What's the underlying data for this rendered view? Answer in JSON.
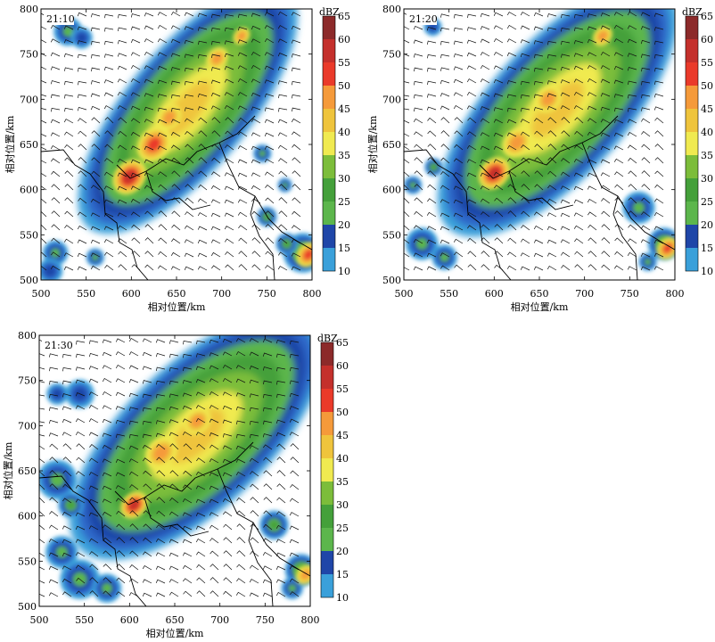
{
  "chart_data": [
    {
      "type": "heatmap",
      "time_label": "21:10",
      "xlabel": "相对位置/km",
      "ylabel": "相对位置/km",
      "xlim": [
        500,
        800
      ],
      "ylim": [
        500,
        800
      ],
      "xticks": [
        "500",
        "550",
        "600",
        "650",
        "700",
        "750",
        "800"
      ],
      "yticks": [
        "500",
        "550",
        "600",
        "650",
        "700",
        "750",
        "800"
      ],
      "colorbar_unit": "dBZ",
      "colorbar_ticks": [
        "10",
        "15",
        "20",
        "25",
        "30",
        "35",
        "40",
        "45",
        "50",
        "55",
        "60",
        "65"
      ],
      "echo_band": {
        "x1": 600,
        "y1": 615,
        "x2": 725,
        "y2": 765,
        "width": 135
      },
      "cores": [
        {
          "x": 598,
          "y": 614,
          "dbz": 62,
          "r": 14
        },
        {
          "x": 625,
          "y": 650,
          "dbz": 57,
          "r": 14
        },
        {
          "x": 642,
          "y": 680,
          "dbz": 54,
          "r": 10
        },
        {
          "x": 695,
          "y": 745,
          "dbz": 53,
          "r": 9
        },
        {
          "x": 722,
          "y": 770,
          "dbz": 52,
          "r": 7
        },
        {
          "x": 796,
          "y": 528,
          "dbz": 58,
          "r": 10
        }
      ],
      "cells": [
        {
          "x": 530,
          "y": 775,
          "dbz": 26,
          "r": 16
        },
        {
          "x": 545,
          "y": 768,
          "dbz": 24,
          "r": 12
        },
        {
          "x": 516,
          "y": 530,
          "dbz": 26,
          "r": 14
        },
        {
          "x": 510,
          "y": 510,
          "dbz": 20,
          "r": 14
        },
        {
          "x": 560,
          "y": 525,
          "dbz": 26,
          "r": 10
        },
        {
          "x": 745,
          "y": 640,
          "dbz": 27,
          "r": 10
        },
        {
          "x": 770,
          "y": 605,
          "dbz": 26,
          "r": 8
        },
        {
          "x": 750,
          "y": 570,
          "dbz": 33,
          "r": 11
        },
        {
          "x": 790,
          "y": 530,
          "dbz": 38,
          "r": 22
        },
        {
          "x": 772,
          "y": 540,
          "dbz": 32,
          "r": 12
        }
      ]
    },
    {
      "type": "heatmap",
      "time_label": "21:20",
      "xlabel": "相对位置/km",
      "ylabel": "相对位置/km",
      "xlim": [
        500,
        800
      ],
      "ylim": [
        500,
        800
      ],
      "xticks": [
        "500",
        "550",
        "600",
        "650",
        "700",
        "750",
        "800"
      ],
      "yticks": [
        "500",
        "550",
        "600",
        "650",
        "700",
        "750",
        "800"
      ],
      "colorbar_unit": "dBZ",
      "colorbar_ticks": [
        "10",
        "15",
        "20",
        "25",
        "30",
        "35",
        "40",
        "45",
        "50",
        "55",
        "60",
        "65"
      ],
      "echo_band": {
        "x1": 605,
        "y1": 618,
        "x2": 735,
        "y2": 760,
        "width": 150
      },
      "cores": [
        {
          "x": 600,
          "y": 618,
          "dbz": 62,
          "r": 13
        },
        {
          "x": 625,
          "y": 652,
          "dbz": 56,
          "r": 12
        },
        {
          "x": 660,
          "y": 700,
          "dbz": 54,
          "r": 11
        },
        {
          "x": 720,
          "y": 770,
          "dbz": 52,
          "r": 8
        },
        {
          "x": 792,
          "y": 535,
          "dbz": 57,
          "r": 9
        }
      ],
      "cells": [
        {
          "x": 532,
          "y": 780,
          "dbz": 22,
          "r": 10
        },
        {
          "x": 533,
          "y": 625,
          "dbz": 33,
          "r": 10
        },
        {
          "x": 510,
          "y": 605,
          "dbz": 26,
          "r": 10
        },
        {
          "x": 520,
          "y": 540,
          "dbz": 27,
          "r": 18
        },
        {
          "x": 545,
          "y": 525,
          "dbz": 26,
          "r": 14
        },
        {
          "x": 760,
          "y": 580,
          "dbz": 28,
          "r": 18
        },
        {
          "x": 788,
          "y": 540,
          "dbz": 38,
          "r": 18
        },
        {
          "x": 770,
          "y": 520,
          "dbz": 26,
          "r": 10
        }
      ]
    },
    {
      "type": "heatmap",
      "time_label": "21:30",
      "xlabel": "相对位置/km",
      "ylabel": "相对位置/km",
      "xlim": [
        500,
        800
      ],
      "ylim": [
        500,
        800
      ],
      "xticks": [
        "500",
        "550",
        "600",
        "650",
        "700",
        "750",
        "800"
      ],
      "yticks": [
        "500",
        "550",
        "600",
        "650",
        "700",
        "750",
        "800"
      ],
      "colorbar_unit": "dBZ",
      "colorbar_ticks": [
        "10",
        "15",
        "20",
        "25",
        "30",
        "35",
        "40",
        "45",
        "50",
        "55",
        "60",
        "65"
      ],
      "echo_band": {
        "x1": 608,
        "y1": 625,
        "x2": 740,
        "y2": 752,
        "width": 160
      },
      "cores": [
        {
          "x": 605,
          "y": 612,
          "dbz": 62,
          "r": 11
        },
        {
          "x": 635,
          "y": 670,
          "dbz": 55,
          "r": 13
        },
        {
          "x": 675,
          "y": 705,
          "dbz": 56,
          "r": 11
        },
        {
          "x": 795,
          "y": 535,
          "dbz": 55,
          "r": 8
        }
      ],
      "cells": [
        {
          "x": 545,
          "y": 735,
          "dbz": 24,
          "r": 16
        },
        {
          "x": 520,
          "y": 735,
          "dbz": 22,
          "r": 12
        },
        {
          "x": 520,
          "y": 640,
          "dbz": 27,
          "r": 22
        },
        {
          "x": 535,
          "y": 612,
          "dbz": 30,
          "r": 14
        },
        {
          "x": 525,
          "y": 560,
          "dbz": 26,
          "r": 18
        },
        {
          "x": 545,
          "y": 530,
          "dbz": 27,
          "r": 22
        },
        {
          "x": 575,
          "y": 520,
          "dbz": 26,
          "r": 16
        },
        {
          "x": 760,
          "y": 590,
          "dbz": 34,
          "r": 16
        },
        {
          "x": 790,
          "y": 540,
          "dbz": 36,
          "r": 18
        },
        {
          "x": 780,
          "y": 520,
          "dbz": 28,
          "r": 12
        }
      ]
    }
  ],
  "palette": [
    "#3aa0da",
    "#2f68c9",
    "#1f46a8",
    "#5cb64c",
    "#44a03a",
    "#7cbd3a",
    "#f0ea50",
    "#efc43c",
    "#f59a3a",
    "#ea3a2a",
    "#c4302c",
    "#8c2a2a",
    "#4a1414"
  ]
}
